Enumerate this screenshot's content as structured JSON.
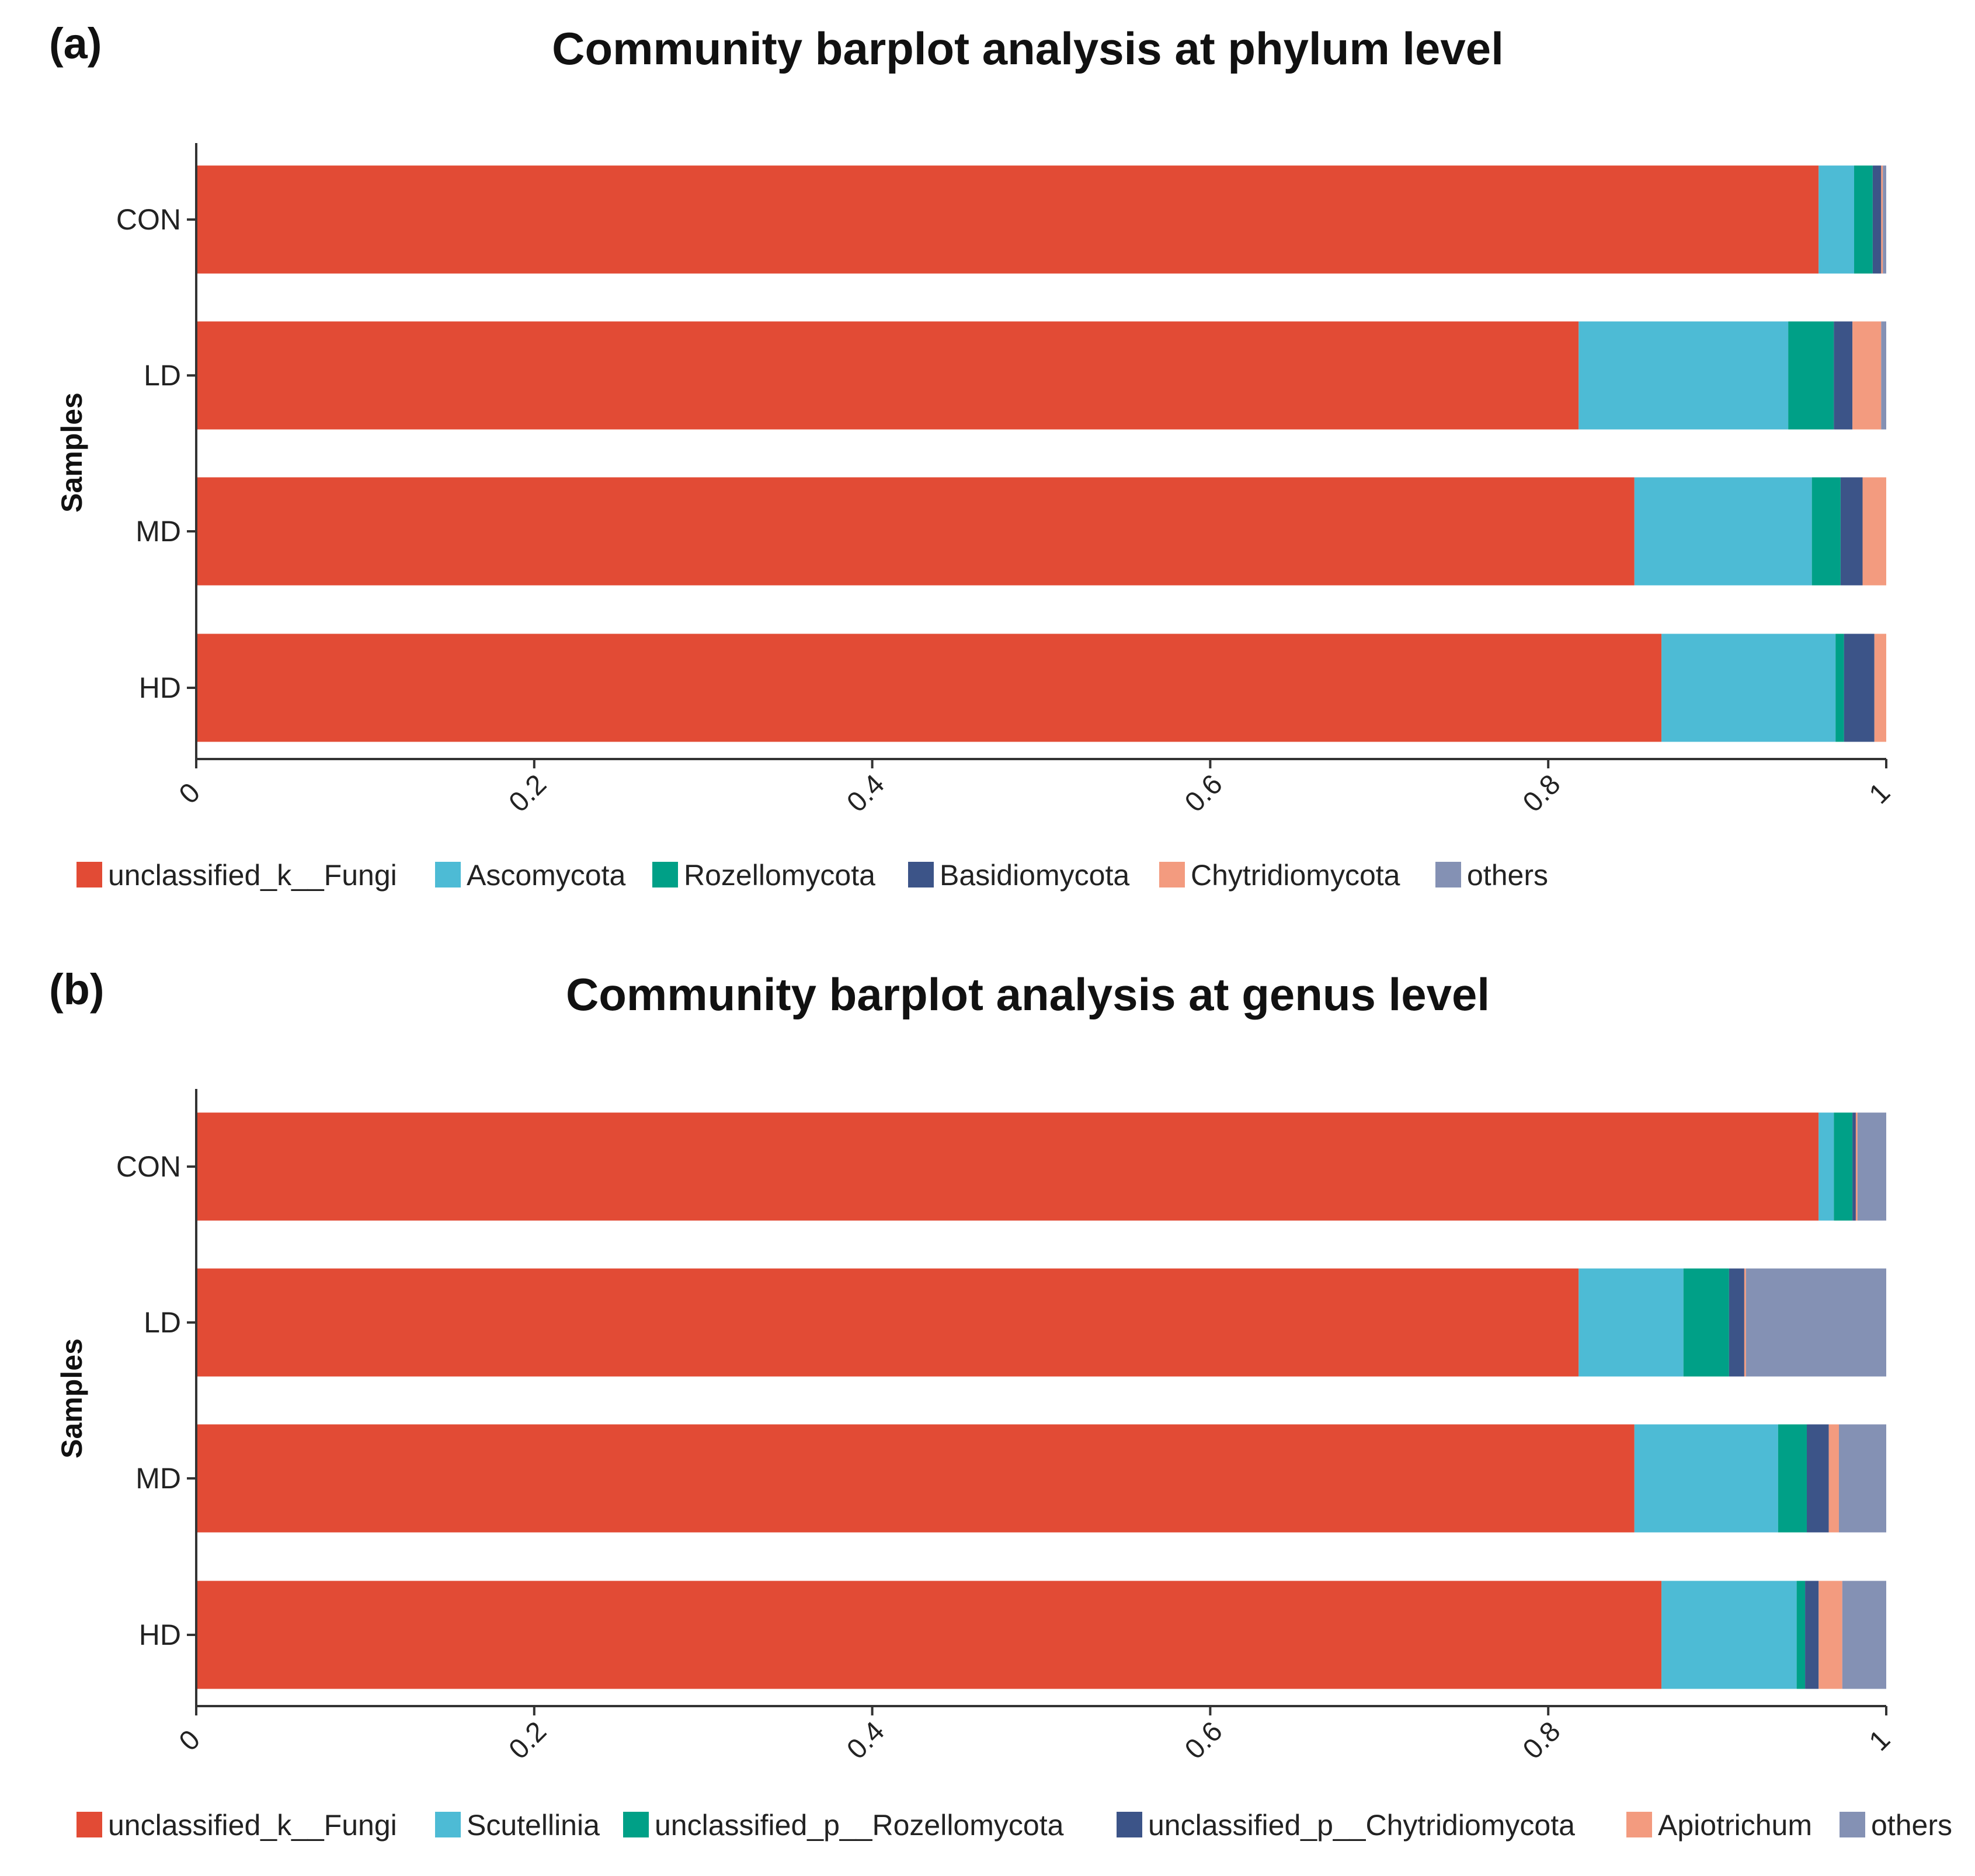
{
  "chart_data": [
    {
      "type": "bar",
      "orientation": "horizontal",
      "stacked": true,
      "panel_label": "(a)",
      "title": "Community barplot analysis at phylum level",
      "xlabel": "",
      "ylabel": "Samples",
      "xlim": [
        0,
        1
      ],
      "x_ticks": [
        "0",
        "0.2",
        "0.4",
        "0.6",
        "0.8",
        "1"
      ],
      "categories": [
        "CON",
        "LD",
        "MD",
        "HD"
      ],
      "legend_position": "bottom",
      "series": [
        {
          "name": "unclassified_k__Fungi",
          "color": "#e24b35",
          "values": [
            0.96,
            0.818,
            0.851,
            0.867
          ]
        },
        {
          "name": "Ascomycota",
          "color": "#4dbbd5",
          "values": [
            0.021,
            0.124,
            0.105,
            0.103
          ]
        },
        {
          "name": "Rozellomycota",
          "color": "#00a087",
          "values": [
            0.011,
            0.027,
            0.017,
            0.005
          ]
        },
        {
          "name": "Basidiomycota",
          "color": "#3c5488",
          "values": [
            0.005,
            0.011,
            0.013,
            0.018
          ]
        },
        {
          "name": "Chytridiomycota",
          "color": "#f39b7f",
          "values": [
            0.001,
            0.017,
            0.014,
            0.007
          ]
        },
        {
          "name": "others",
          "color": "#8491b4",
          "values": [
            0.002,
            0.003,
            0.0,
            0.0
          ]
        }
      ]
    },
    {
      "type": "bar",
      "orientation": "horizontal",
      "stacked": true,
      "panel_label": "(b)",
      "title": "Community barplot analysis at genus level",
      "xlabel": "",
      "ylabel": "Samples",
      "xlim": [
        0,
        1
      ],
      "x_ticks": [
        "0",
        "0.2",
        "0.4",
        "0.6",
        "0.8",
        "1"
      ],
      "categories": [
        "CON",
        "LD",
        "MD",
        "HD"
      ],
      "legend_position": "bottom",
      "series": [
        {
          "name": "unclassified_k__Fungi",
          "color": "#e24b35",
          "values": [
            0.96,
            0.818,
            0.851,
            0.867
          ]
        },
        {
          "name": "Scutellinia",
          "color": "#4dbbd5",
          "values": [
            0.009,
            0.062,
            0.085,
            0.08
          ]
        },
        {
          "name": "unclassified_p__Rozellomycota",
          "color": "#00a087",
          "values": [
            0.011,
            0.027,
            0.017,
            0.005
          ]
        },
        {
          "name": "unclassified_p__Chytridiomycota",
          "color": "#3c5488",
          "values": [
            0.002,
            0.009,
            0.013,
            0.008
          ]
        },
        {
          "name": "Apiotrichum",
          "color": "#f39b7f",
          "values": [
            0.001,
            0.001,
            0.006,
            0.014
          ]
        },
        {
          "name": "others",
          "color": "#8491b4",
          "values": [
            0.017,
            0.083,
            0.028,
            0.026
          ]
        }
      ]
    }
  ]
}
